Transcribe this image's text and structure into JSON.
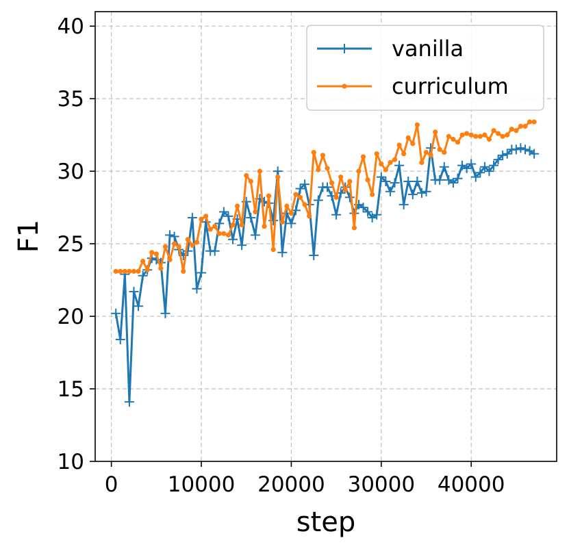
{
  "chart_data": {
    "type": "line",
    "title": "",
    "xlabel": "step",
    "ylabel": "F1",
    "xlim": [
      -1800,
      49500
    ],
    "ylim": [
      10,
      41
    ],
    "xticks": [
      0,
      10000,
      20000,
      30000,
      40000
    ],
    "xtick_labels": [
      "0",
      "10000",
      "20000",
      "30000",
      "40000"
    ],
    "yticks": [
      10,
      15,
      20,
      25,
      30,
      35,
      40
    ],
    "ytick_labels": [
      "10",
      "15",
      "20",
      "25",
      "30",
      "35",
      "40"
    ],
    "grid": true,
    "legend_position": "top-right",
    "series": [
      {
        "name": "vanilla",
        "color": "#1f77b4",
        "marker": "plus",
        "x": [
          500,
          1000,
          1500,
          2000,
          2500,
          3000,
          3500,
          4000,
          4500,
          5000,
          5500,
          6000,
          6500,
          7000,
          7500,
          8000,
          8500,
          9000,
          9500,
          10000,
          10500,
          11000,
          11500,
          12000,
          12500,
          13000,
          13500,
          14000,
          14500,
          15000,
          15500,
          16000,
          16500,
          17000,
          17500,
          18000,
          18500,
          19000,
          19500,
          20000,
          20500,
          21000,
          21500,
          22000,
          22500,
          23000,
          23500,
          24000,
          24500,
          25000,
          25500,
          26000,
          26500,
          27000,
          27500,
          28000,
          28500,
          29000,
          29500,
          30000,
          30500,
          31000,
          31500,
          32000,
          32500,
          33000,
          33500,
          34000,
          34500,
          35000,
          35500,
          36000,
          36500,
          37000,
          37500,
          38000,
          38500,
          39000,
          39500,
          40000,
          40500,
          41000,
          41500,
          42000,
          42500,
          43000,
          43500,
          44000,
          44500,
          45000,
          45500,
          46000,
          46500,
          47000
        ],
        "y": [
          20.2,
          18.4,
          22.9,
          14.1,
          21.7,
          20.7,
          22.8,
          23.2,
          24.0,
          23.9,
          23.7,
          20.2,
          25.6,
          25.5,
          24.6,
          24.2,
          24.5,
          26.8,
          21.9,
          23.0,
          26.5,
          24.5,
          24.5,
          26.4,
          27.2,
          26.9,
          25.3,
          26.7,
          24.9,
          27.9,
          26.8,
          25.6,
          28.1,
          27.9,
          27.8,
          26.6,
          30.0,
          24.4,
          27.1,
          26.4,
          27.3,
          28.8,
          29.1,
          27.7,
          24.2,
          28.0,
          28.9,
          28.9,
          28.3,
          27.0,
          28.5,
          28.9,
          28.2,
          27.1,
          27.7,
          27.5,
          27.2,
          26.8,
          27.0,
          29.6,
          29.3,
          28.6,
          29.2,
          30.4,
          27.7,
          29.3,
          28.4,
          29.3,
          28.5,
          28.6,
          31.6,
          29.4,
          29.4,
          30.3,
          29.4,
          29.2,
          29.5,
          30.4,
          30.2,
          30.5,
          29.6,
          29.9,
          30.3,
          30.0,
          30.4,
          30.8,
          31.1,
          31.2,
          31.5,
          31.5,
          31.6,
          31.5,
          31.4,
          31.2
        ]
      },
      {
        "name": "curriculum",
        "color": "#ff7f0e",
        "marker": "dot",
        "x": [
          500,
          1000,
          1500,
          2000,
          2500,
          3000,
          3500,
          4000,
          4500,
          5000,
          5500,
          6000,
          6500,
          7000,
          7500,
          8000,
          8500,
          9000,
          9500,
          10000,
          10500,
          11000,
          11500,
          12000,
          12500,
          13000,
          13500,
          14000,
          14500,
          15000,
          15500,
          16000,
          16500,
          17000,
          17500,
          18000,
          18500,
          19000,
          19500,
          20000,
          20500,
          21000,
          21500,
          22000,
          22500,
          23000,
          23500,
          24000,
          24500,
          25000,
          25500,
          26000,
          26500,
          27000,
          27500,
          28000,
          28500,
          29000,
          29500,
          30000,
          30500,
          31000,
          31500,
          32000,
          32500,
          33000,
          33500,
          34000,
          34500,
          35000,
          35500,
          36000,
          36500,
          37000,
          37500,
          38000,
          38500,
          39000,
          39500,
          40000,
          40500,
          41000,
          41500,
          42000,
          42500,
          43000,
          43500,
          44000,
          44500,
          45000,
          45500,
          46000,
          46500,
          47000
        ],
        "y": [
          23.1,
          23.1,
          23.1,
          23.1,
          23.1,
          23.1,
          23.8,
          23.2,
          24.4,
          24.3,
          23.3,
          24.8,
          23.9,
          25.0,
          24.8,
          23.1,
          25.3,
          24.9,
          25.1,
          26.7,
          26.9,
          26.0,
          26.2,
          25.7,
          25.7,
          25.6,
          26.3,
          27.6,
          26.3,
          29.7,
          29.3,
          27.2,
          30.0,
          26.2,
          28.3,
          24.6,
          29.6,
          26.5,
          27.6,
          27.1,
          28.4,
          28.2,
          27.7,
          26.9,
          31.3,
          30.1,
          31.1,
          30.2,
          29.2,
          28.2,
          29.6,
          28.7,
          29.3,
          26.1,
          30.0,
          31.0,
          29.4,
          28.4,
          31.2,
          30.5,
          30.1,
          30.6,
          30.8,
          31.8,
          31.2,
          32.3,
          31.9,
          33.2,
          30.6,
          31.3,
          31.1,
          32.7,
          31.5,
          31.3,
          32.4,
          32.2,
          32.0,
          32.5,
          32.6,
          32.5,
          32.4,
          32.4,
          32.5,
          32.2,
          32.8,
          32.6,
          32.4,
          32.5,
          32.9,
          32.8,
          33.1,
          33.1,
          33.4,
          33.4
        ]
      }
    ]
  }
}
